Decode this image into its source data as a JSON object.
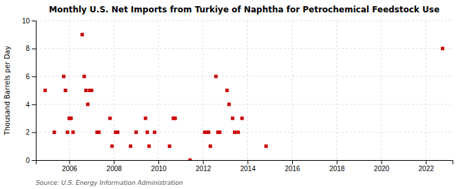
{
  "chart_data": {
    "type": "scatter",
    "title": "Monthly U.S. Net Imports from Turkiye of Naphtha for Petrochemical Feedstock Use",
    "ylabel": "Thousand Barrels per Day",
    "annotations": [
      "Source: U.S. Energy Information Administration"
    ],
    "x": [
      2004.92,
      2005.33,
      2005.75,
      2005.83,
      2005.92,
      2006.0,
      2006.08,
      2006.17,
      2006.58,
      2006.67,
      2006.75,
      2006.83,
      2006.92,
      2007.0,
      2007.25,
      2007.33,
      2007.83,
      2007.92,
      2008.08,
      2008.17,
      2008.75,
      2009.0,
      2009.42,
      2009.5,
      2009.58,
      2009.83,
      2010.5,
      2010.67,
      2010.75,
      2011.42,
      2012.08,
      2012.17,
      2012.25,
      2012.33,
      2012.58,
      2012.67,
      2012.75,
      2013.08,
      2013.17,
      2013.33,
      2013.42,
      2013.58,
      2013.75,
      2014.83,
      2022.75
    ],
    "values": [
      5,
      2,
      6,
      5,
      2,
      3,
      3,
      2,
      9,
      6,
      5,
      4,
      5,
      5,
      2,
      2,
      3,
      1,
      2,
      2,
      1,
      2,
      3,
      2,
      1,
      2,
      1,
      3,
      3,
      0,
      2,
      2,
      2,
      1,
      6,
      2,
      2,
      5,
      4,
      3,
      2,
      2,
      3,
      1,
      8
    ],
    "color": "#cc0000",
    "marker": "square",
    "xlim": [
      2004.5,
      2023.2
    ],
    "xticks": [
      2006,
      2008,
      2010,
      2012,
      2014,
      2016,
      2018,
      2020,
      2022
    ],
    "ylim": [
      0,
      10
    ],
    "yticks": [
      0,
      2,
      4,
      6,
      8,
      10
    ],
    "grid": true
  }
}
